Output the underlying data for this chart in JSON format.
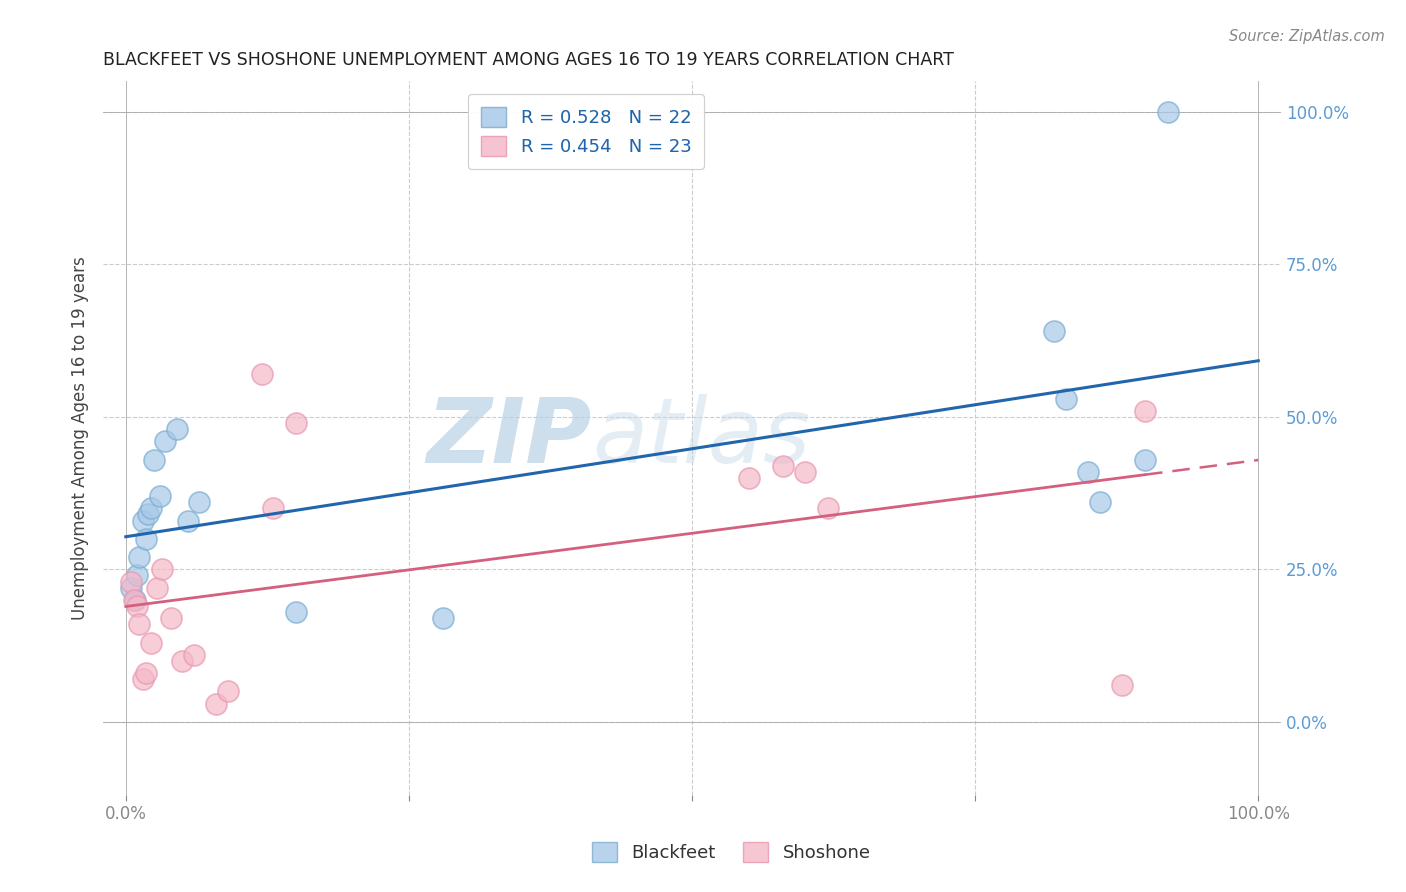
{
  "title": "BLACKFEET VS SHOSHONE UNEMPLOYMENT AMONG AGES 16 TO 19 YEARS CORRELATION CHART",
  "source": "Source: ZipAtlas.com",
  "ylabel": "Unemployment Among Ages 16 to 19 years",
  "blackfeet_x": [
    0.005,
    0.008,
    0.01,
    0.012,
    0.015,
    0.018,
    0.02,
    0.022,
    0.025,
    0.03,
    0.035,
    0.045,
    0.055,
    0.065,
    0.15,
    0.28,
    0.82,
    0.83,
    0.85,
    0.86,
    0.9,
    0.92
  ],
  "blackfeet_y": [
    0.22,
    0.2,
    0.24,
    0.27,
    0.33,
    0.3,
    0.34,
    0.35,
    0.43,
    0.37,
    0.46,
    0.48,
    0.33,
    0.36,
    0.18,
    0.17,
    0.64,
    0.53,
    0.41,
    0.36,
    0.43,
    1.0
  ],
  "shoshone_x": [
    0.005,
    0.007,
    0.01,
    0.012,
    0.015,
    0.018,
    0.022,
    0.028,
    0.032,
    0.04,
    0.05,
    0.06,
    0.08,
    0.09,
    0.12,
    0.13,
    0.15,
    0.55,
    0.58,
    0.6,
    0.62,
    0.88,
    0.9
  ],
  "shoshone_y": [
    0.23,
    0.2,
    0.19,
    0.16,
    0.07,
    0.08,
    0.13,
    0.22,
    0.25,
    0.17,
    0.1,
    0.11,
    0.03,
    0.05,
    0.57,
    0.35,
    0.49,
    0.4,
    0.42,
    0.41,
    0.35,
    0.06,
    0.51
  ],
  "blackfeet_R": 0.528,
  "blackfeet_N": 22,
  "shoshone_R": 0.454,
  "shoshone_N": 23,
  "blackfeet_color": "#a8c8e8",
  "shoshone_color": "#f4b8c8",
  "blackfeet_edge_color": "#7aaed0",
  "shoshone_edge_color": "#e898b0",
  "blackfeet_line_color": "#2166ac",
  "shoshone_line_color": "#d46080",
  "xlim": [
    -0.02,
    1.02
  ],
  "ylim": [
    -0.12,
    1.05
  ],
  "plot_xlim": [
    0.0,
    1.0
  ],
  "plot_ylim": [
    0.0,
    1.0
  ],
  "xticks": [
    0.0,
    0.25,
    0.5,
    0.75,
    1.0
  ],
  "xtick_labels": [
    "0.0%",
    "",
    "",
    "",
    "100.0%"
  ],
  "yticks": [
    0.0,
    0.25,
    0.5,
    0.75,
    1.0
  ],
  "ytick_labels_right": [
    "0.0%",
    "25.0%",
    "50.0%",
    "75.0%",
    "100.0%"
  ],
  "background_color": "#ffffff",
  "watermark_zip": "ZIP",
  "watermark_atlas": "atlas",
  "watermark_color": "#dce8f0"
}
